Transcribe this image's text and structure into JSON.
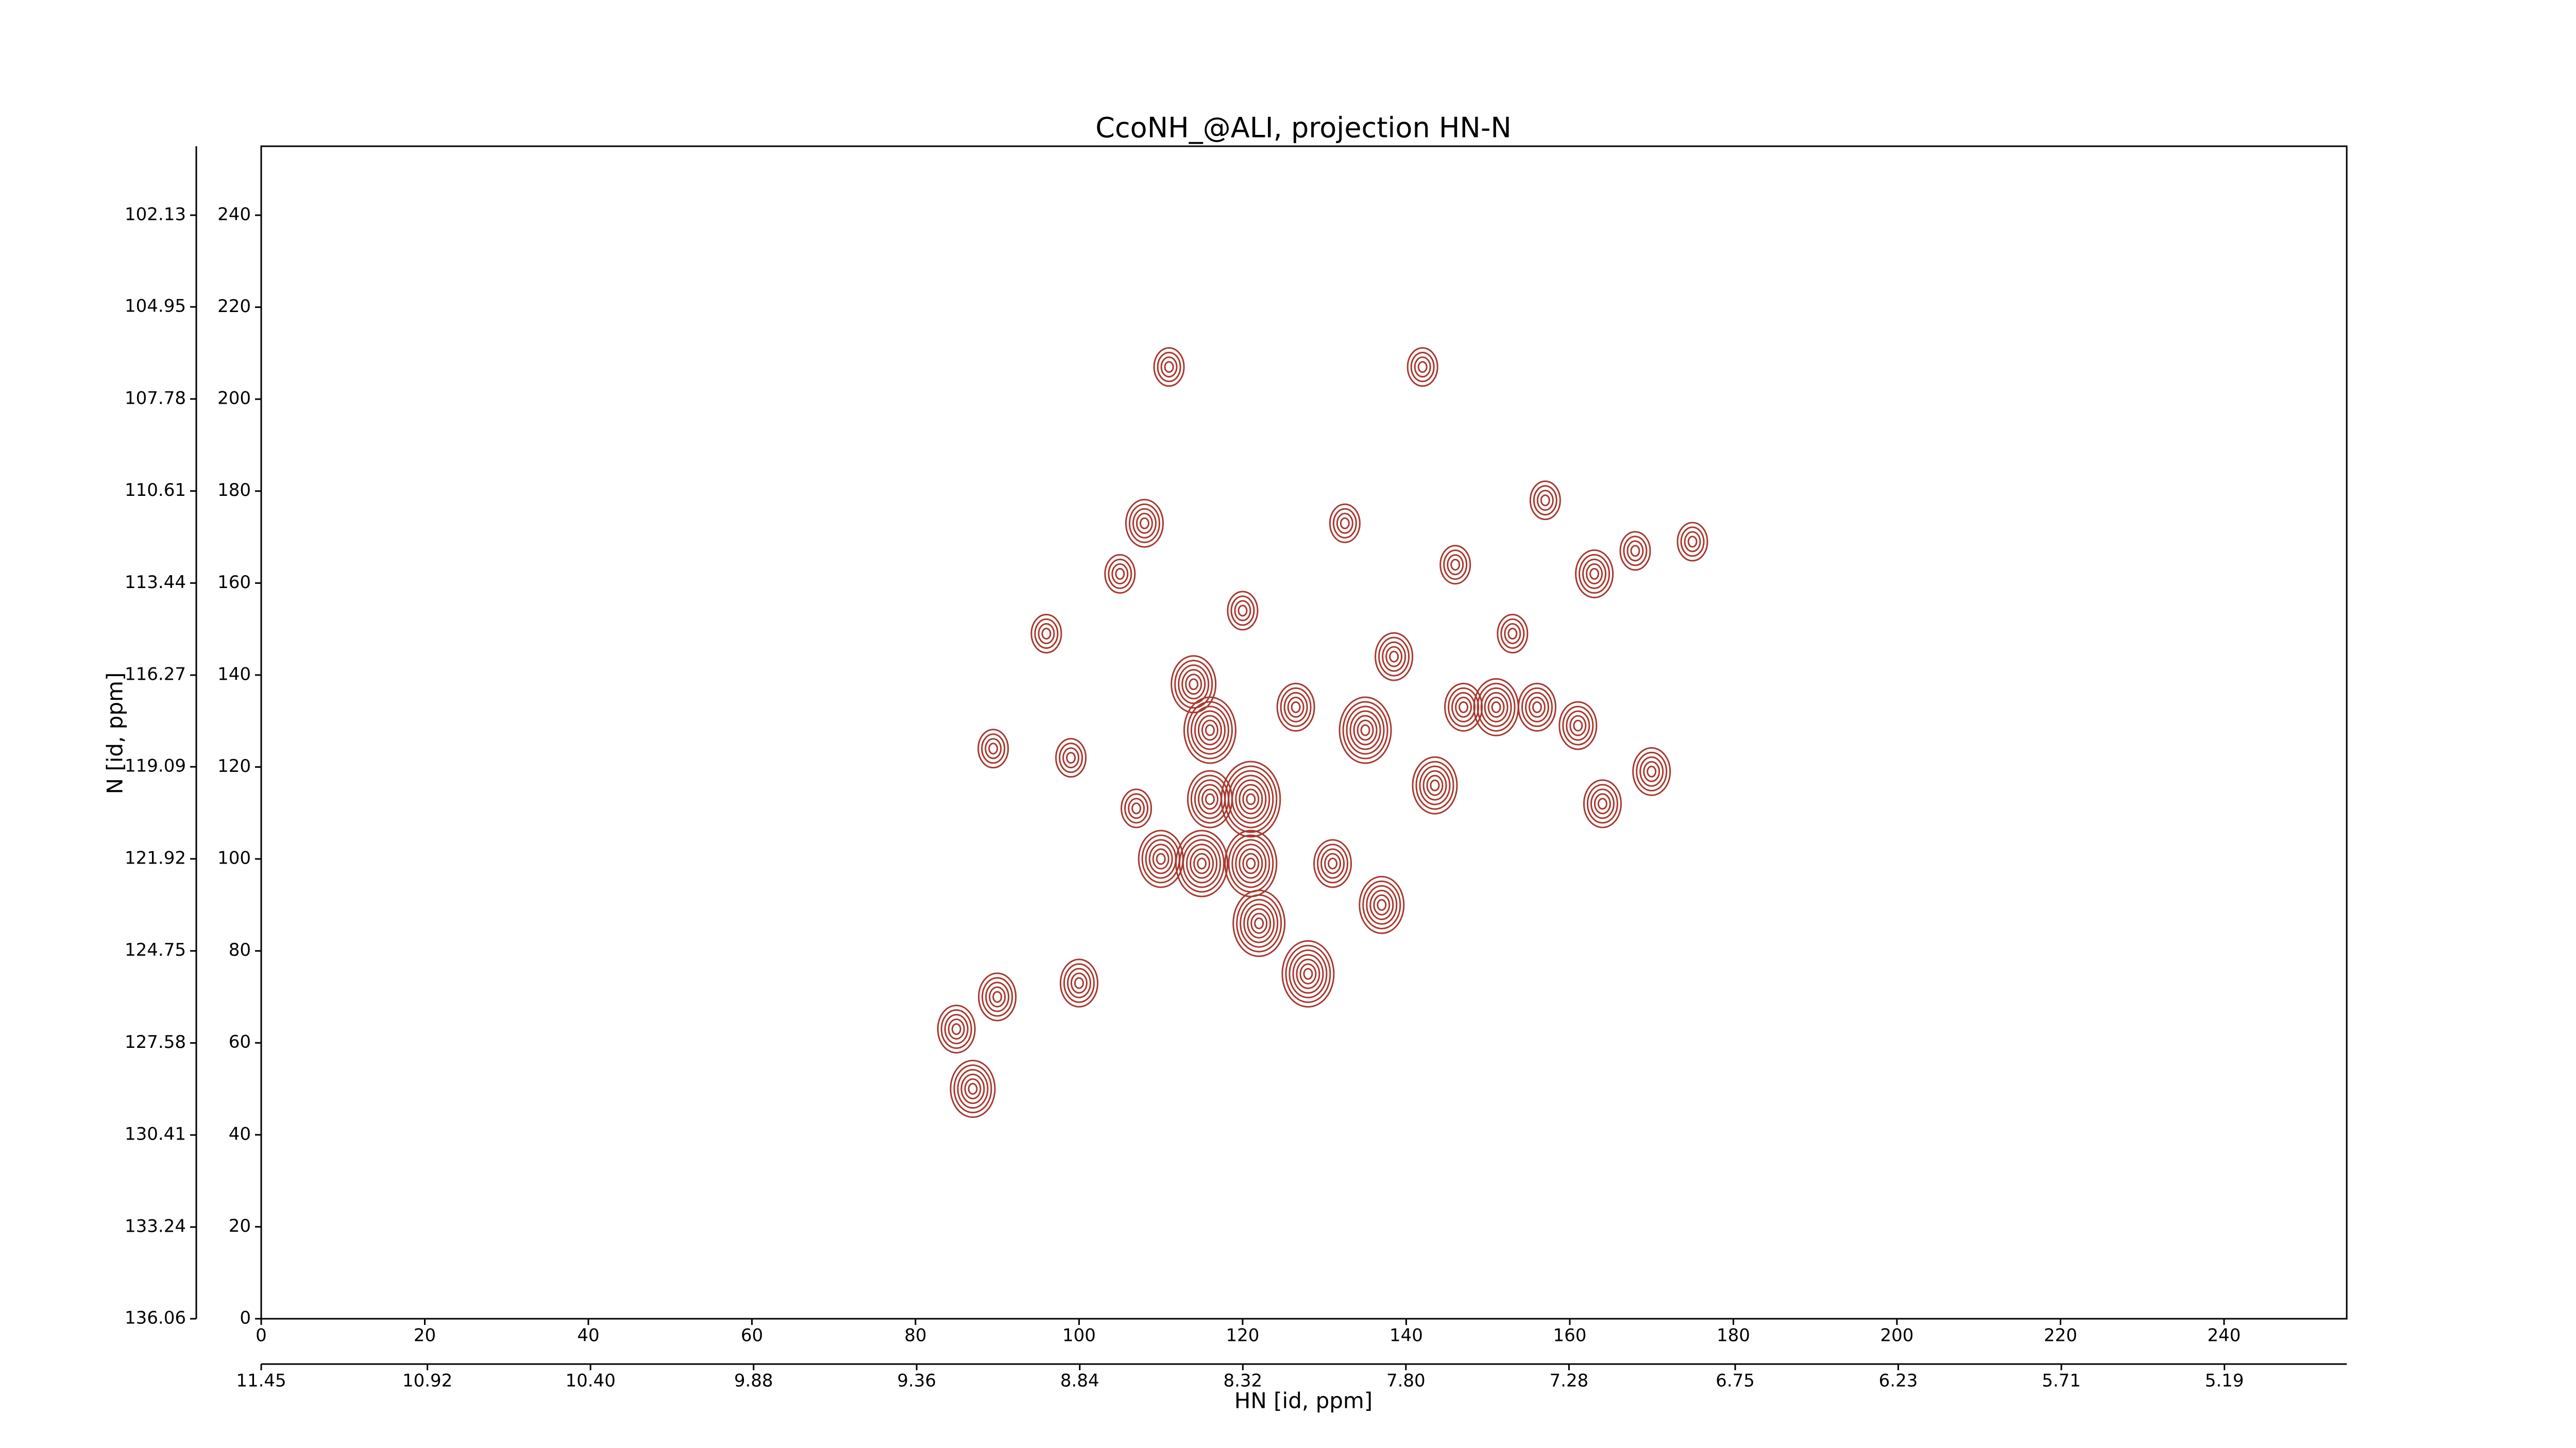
{
  "chart_data": {
    "type": "contour",
    "title": "CcoNH_@ALI, projection HN-N",
    "x_label": "HN [id, ppm]",
    "y_label": "N [id, ppm]",
    "xlim": [
      0,
      255
    ],
    "ylim": [
      0,
      255
    ],
    "xticks": [
      0,
      20,
      40,
      60,
      80,
      100,
      120,
      140,
      160,
      180,
      200,
      220,
      240
    ],
    "yticks": [
      0,
      20,
      40,
      60,
      80,
      100,
      120,
      140,
      160,
      180,
      200,
      220,
      240
    ],
    "x2lim": [
      11.45,
      4.8
    ],
    "x2ticks": [
      {
        "value": 11.45,
        "label": "11.45"
      },
      {
        "value": 10.92,
        "label": "10.92"
      },
      {
        "value": 10.4,
        "label": "10.40"
      },
      {
        "value": 9.88,
        "label": "9.88"
      },
      {
        "value": 9.36,
        "label": "9.36"
      },
      {
        "value": 8.84,
        "label": "8.84"
      },
      {
        "value": 8.32,
        "label": "8.32"
      },
      {
        "value": 7.8,
        "label": "7.80"
      },
      {
        "value": 7.28,
        "label": "7.28"
      },
      {
        "value": 6.75,
        "label": "6.75"
      },
      {
        "value": 6.23,
        "label": "6.23"
      },
      {
        "value": 5.71,
        "label": "5.71"
      },
      {
        "value": 5.19,
        "label": "5.19"
      }
    ],
    "y2lim": [
      136.06,
      100.01
    ],
    "y2ticks": [
      {
        "value": 136.06,
        "label": "136.06"
      },
      {
        "value": 133.24,
        "label": "133.24"
      },
      {
        "value": 130.41,
        "label": "130.41"
      },
      {
        "value": 127.58,
        "label": "127.58"
      },
      {
        "value": 124.75,
        "label": "124.75"
      },
      {
        "value": 121.92,
        "label": "121.92"
      },
      {
        "value": 119.09,
        "label": "119.09"
      },
      {
        "value": 116.27,
        "label": "116.27"
      },
      {
        "value": 113.44,
        "label": "113.44"
      },
      {
        "value": 110.61,
        "label": "110.61"
      },
      {
        "value": 107.78,
        "label": "107.78"
      },
      {
        "value": 104.95,
        "label": "104.95"
      },
      {
        "value": 102.13,
        "label": "102.13"
      }
    ],
    "color": "#a8392f",
    "x": [
      111,
      142,
      108,
      105,
      120,
      96,
      114,
      116,
      121,
      126.5,
      135,
      143.5,
      147,
      151,
      156,
      161,
      164,
      170,
      163,
      146,
      138.5,
      153,
      110,
      115,
      121,
      131,
      137,
      122,
      128,
      89.5,
      90,
      85,
      87,
      100,
      116,
      132.5,
      157,
      168,
      175,
      99,
      107
    ],
    "y": [
      207,
      207,
      173,
      162,
      154,
      149,
      138,
      128,
      113,
      133,
      128,
      116,
      133,
      133,
      133,
      129,
      112,
      119,
      162,
      164,
      144,
      149,
      100,
      99,
      99,
      99,
      90,
      86,
      75,
      124,
      70,
      63,
      50,
      73,
      113,
      173,
      178,
      167,
      169,
      122,
      111
    ],
    "sizes": [
      4,
      4,
      5,
      4,
      4,
      4,
      6,
      7,
      8,
      5,
      7,
      6,
      5,
      6,
      5,
      5,
      5,
      5,
      5,
      4,
      5,
      4,
      6,
      7,
      7,
      5,
      6,
      7,
      7,
      4,
      5,
      5,
      6,
      5,
      6,
      4,
      4,
      4,
      4,
      4,
      4
    ]
  }
}
